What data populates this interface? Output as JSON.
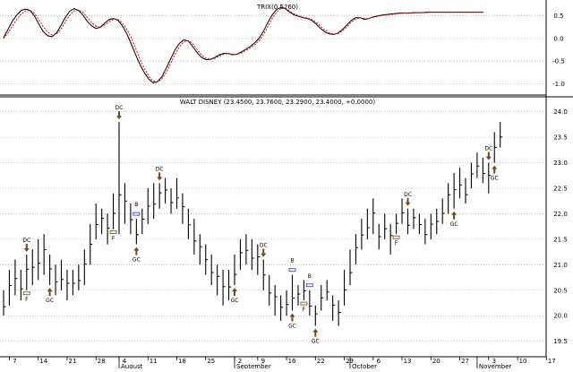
{
  "chart_data": [
    {
      "type": "line",
      "title": "TRIX(0.5260)",
      "ylim": [
        -1.25,
        0.85
      ],
      "y_ticks": [
        "0.5",
        "0.0",
        "-0.5",
        "-1.0"
      ],
      "y_tick_values": [
        0.5,
        0.0,
        -0.5,
        -1.0
      ],
      "grid": "horizontal dotted",
      "colors": {
        "trix": "#000000",
        "signal": "#e00000"
      },
      "x": [
        1,
        2,
        3,
        4,
        5,
        6,
        7,
        8,
        9,
        10,
        11,
        12,
        13,
        14,
        15,
        16,
        17,
        18,
        19,
        20,
        21,
        22,
        23,
        24,
        25,
        26,
        27,
        28,
        29,
        30,
        31,
        32,
        33,
        34,
        35,
        36,
        37,
        38,
        39,
        40,
        41,
        42,
        43,
        44,
        45,
        46,
        47,
        48,
        49,
        50,
        51,
        52,
        53,
        54,
        55,
        56,
        57,
        58,
        59,
        60,
        61,
        62,
        63,
        64,
        65,
        66,
        67,
        68,
        69,
        70,
        71,
        72,
        73,
        74,
        75,
        76,
        77,
        78,
        79,
        80,
        81,
        82,
        83,
        84,
        85,
        86,
        87,
        88,
        89,
        90,
        91,
        92,
        93,
        94,
        95,
        96,
        97,
        98,
        99,
        100,
        101,
        102,
        103,
        104,
        105,
        106,
        107,
        108,
        109,
        110
      ],
      "series": [
        {
          "id": "trix",
          "values": [
            0.02,
            0.2,
            0.38,
            0.52,
            0.62,
            0.65,
            0.62,
            0.5,
            0.32,
            0.15,
            0.06,
            0.04,
            0.12,
            0.28,
            0.46,
            0.6,
            0.66,
            0.62,
            0.52,
            0.38,
            0.28,
            0.22,
            0.25,
            0.34,
            0.42,
            0.44,
            0.4,
            0.28,
            0.1,
            -0.12,
            -0.36,
            -0.58,
            -0.76,
            -0.9,
            -0.98,
            -0.95,
            -0.84,
            -0.65,
            -0.44,
            -0.24,
            -0.1,
            -0.03,
            -0.06,
            -0.18,
            -0.32,
            -0.42,
            -0.47,
            -0.46,
            -0.42,
            -0.36,
            -0.33,
            -0.33,
            -0.36,
            -0.35,
            -0.3,
            -0.24,
            -0.18,
            -0.1,
            0.0,
            0.15,
            0.35,
            0.52,
            0.64,
            0.69,
            0.66,
            0.58,
            0.52,
            0.49,
            0.46,
            0.44,
            0.4,
            0.32,
            0.22,
            0.14,
            0.1,
            0.09,
            0.12,
            0.2,
            0.3,
            0.4,
            0.46,
            0.46,
            0.42,
            0.44,
            0.48,
            0.5,
            0.52,
            0.53,
            0.54,
            0.55,
            0.56,
            0.56,
            0.56,
            0.57,
            0.57,
            0.57,
            0.58,
            0.58,
            0.58,
            0.58,
            0.58,
            0.58,
            0.58,
            0.58,
            0.58,
            0.58,
            0.58,
            0.58,
            0.58,
            0.58
          ]
        },
        {
          "id": "signal",
          "values": [
            0.0,
            0.12,
            0.28,
            0.42,
            0.54,
            0.61,
            0.62,
            0.56,
            0.42,
            0.26,
            0.14,
            0.08,
            0.1,
            0.2,
            0.36,
            0.51,
            0.61,
            0.63,
            0.58,
            0.47,
            0.35,
            0.27,
            0.25,
            0.3,
            0.37,
            0.42,
            0.42,
            0.34,
            0.2,
            0.02,
            -0.22,
            -0.46,
            -0.67,
            -0.84,
            -0.94,
            -0.96,
            -0.89,
            -0.74,
            -0.54,
            -0.34,
            -0.17,
            -0.07,
            -0.05,
            -0.12,
            -0.25,
            -0.37,
            -0.44,
            -0.46,
            -0.44,
            -0.39,
            -0.35,
            -0.33,
            -0.35,
            -0.35,
            -0.32,
            -0.27,
            -0.21,
            -0.14,
            -0.05,
            0.08,
            0.26,
            0.44,
            0.58,
            0.66,
            0.67,
            0.61,
            0.54,
            0.5,
            0.47,
            0.45,
            0.42,
            0.36,
            0.27,
            0.18,
            0.12,
            0.1,
            0.11,
            0.17,
            0.26,
            0.36,
            0.43,
            0.46,
            0.44,
            0.44,
            0.47,
            0.49,
            0.51,
            0.52,
            0.53,
            0.54,
            0.55,
            0.56,
            0.56,
            0.56,
            0.57,
            0.57,
            0.57,
            0.58,
            0.58,
            0.58,
            0.58,
            0.58,
            0.58,
            0.58,
            0.58,
            0.58,
            0.58,
            0.58,
            0.58,
            0.58
          ]
        }
      ]
    },
    {
      "type": "ohlc",
      "title": "WALT DISNEY (23.4500, 23.7600, 23.2900, 23.4000, +0.0000)",
      "ylim": [
        19.3,
        24.1
      ],
      "y_ticks": [
        "24.0",
        "23.5",
        "23.0",
        "22.5",
        "22.0",
        "21.5",
        "21.0",
        "20.5",
        "20.0",
        "19.5"
      ],
      "y_tick_values": [
        24.0,
        23.5,
        23.0,
        22.5,
        22.0,
        21.5,
        21.0,
        20.5,
        20.0,
        19.5
      ],
      "x_ticks": [
        {
          "i": 1,
          "label": "7"
        },
        {
          "i": 6,
          "label": "14"
        },
        {
          "i": 11,
          "label": "21"
        },
        {
          "i": 16,
          "label": "28"
        },
        {
          "i": 20,
          "label": "4"
        },
        {
          "i": 25,
          "label": "11"
        },
        {
          "i": 30,
          "label": "18"
        },
        {
          "i": 35,
          "label": "25"
        },
        {
          "i": 40,
          "label": "2"
        },
        {
          "i": 44,
          "label": "9"
        },
        {
          "i": 49,
          "label": "16"
        },
        {
          "i": 54,
          "label": "22"
        },
        {
          "i": 59,
          "label": "29"
        },
        {
          "i": 64,
          "label": "6"
        },
        {
          "i": 69,
          "label": "13"
        },
        {
          "i": 74,
          "label": "20"
        },
        {
          "i": 79,
          "label": "27"
        },
        {
          "i": 84,
          "label": "3"
        },
        {
          "i": 89,
          "label": "10"
        },
        {
          "i": 94,
          "label": "17"
        }
      ],
      "month_labels": [
        {
          "i": 20,
          "label": "August"
        },
        {
          "i": 40,
          "label": "September"
        },
        {
          "i": 60,
          "label": "October"
        },
        {
          "i": 82,
          "label": "November"
        }
      ],
      "bar_count": 87,
      "bars_hl": [
        [
          20.0,
          20.5
        ],
        [
          20.2,
          20.9
        ],
        [
          20.4,
          21.1
        ],
        [
          20.3,
          20.9
        ],
        [
          20.5,
          21.2
        ],
        [
          20.6,
          21.3
        ],
        [
          20.7,
          21.5
        ],
        [
          20.8,
          21.6
        ],
        [
          20.6,
          21.2
        ],
        [
          20.4,
          21.0
        ],
        [
          20.5,
          21.1
        ],
        [
          20.3,
          20.9
        ],
        [
          20.4,
          20.9
        ],
        [
          20.5,
          21.0
        ],
        [
          20.6,
          21.3
        ],
        [
          21.0,
          21.8
        ],
        [
          21.5,
          22.2
        ],
        [
          21.6,
          22.1
        ],
        [
          21.4,
          22.0
        ],
        [
          21.7,
          22.4
        ],
        [
          21.6,
          23.8
        ],
        [
          21.8,
          22.6
        ],
        [
          21.6,
          22.2
        ],
        [
          21.4,
          21.9
        ],
        [
          21.6,
          22.1
        ],
        [
          21.8,
          22.5
        ],
        [
          21.9,
          22.6
        ],
        [
          22.1,
          22.6
        ],
        [
          22.2,
          22.7
        ],
        [
          22.0,
          22.5
        ],
        [
          22.1,
          22.7
        ],
        [
          21.8,
          22.4
        ],
        [
          21.5,
          22.1
        ],
        [
          21.2,
          21.9
        ],
        [
          21.0,
          21.6
        ],
        [
          20.8,
          21.4
        ],
        [
          20.6,
          21.2
        ],
        [
          20.4,
          21.0
        ],
        [
          20.2,
          20.9
        ],
        [
          20.3,
          20.9
        ],
        [
          20.6,
          21.2
        ],
        [
          20.9,
          21.5
        ],
        [
          21.0,
          21.6
        ],
        [
          20.9,
          21.5
        ],
        [
          20.8,
          21.4
        ],
        [
          20.5,
          21.1
        ],
        [
          20.2,
          20.8
        ],
        [
          20.0,
          20.6
        ],
        [
          19.9,
          20.4
        ],
        [
          20.0,
          20.5
        ],
        [
          20.1,
          20.8
        ],
        [
          20.2,
          20.6
        ],
        [
          20.3,
          20.7
        ],
        [
          20.0,
          20.5
        ],
        [
          19.8,
          20.2
        ],
        [
          20.1,
          20.6
        ],
        [
          20.3,
          20.7
        ],
        [
          19.9,
          20.4
        ],
        [
          19.8,
          20.3
        ],
        [
          20.2,
          20.9
        ],
        [
          20.6,
          21.3
        ],
        [
          21.0,
          21.6
        ],
        [
          21.3,
          21.9
        ],
        [
          21.5,
          22.1
        ],
        [
          21.6,
          22.3
        ],
        [
          21.3,
          21.8
        ],
        [
          21.5,
          22.0
        ],
        [
          21.2,
          21.8
        ],
        [
          21.6,
          22.0
        ],
        [
          21.8,
          22.3
        ],
        [
          21.6,
          22.1
        ],
        [
          21.7,
          22.1
        ],
        [
          21.6,
          22.0
        ],
        [
          21.4,
          21.9
        ],
        [
          21.5,
          22.0
        ],
        [
          21.6,
          22.1
        ],
        [
          21.8,
          22.3
        ],
        [
          22.0,
          22.6
        ],
        [
          22.1,
          22.8
        ],
        [
          22.3,
          22.9
        ],
        [
          22.2,
          22.7
        ],
        [
          22.5,
          23.0
        ],
        [
          22.7,
          23.2
        ],
        [
          22.6,
          23.1
        ],
        [
          22.4,
          23.0
        ],
        [
          23.0,
          23.6
        ],
        [
          23.3,
          23.8
        ]
      ],
      "annotations": [
        {
          "i": 4,
          "text": "DC",
          "row": "above"
        },
        {
          "i": 4,
          "text": "F",
          "row": "below"
        },
        {
          "i": 8,
          "text": "GC",
          "row": "below"
        },
        {
          "i": 20,
          "text": "DC",
          "row": "above"
        },
        {
          "i": 19,
          "text": "F",
          "row": "below"
        },
        {
          "i": 23,
          "text": "B",
          "row": "above"
        },
        {
          "i": 23,
          "text": "GC",
          "row": "below"
        },
        {
          "i": 27,
          "text": "DC",
          "row": "above"
        },
        {
          "i": 40,
          "text": "GC",
          "row": "below"
        },
        {
          "i": 45,
          "text": "DC",
          "row": "above"
        },
        {
          "i": 50,
          "text": "B",
          "row": "above"
        },
        {
          "i": 53,
          "text": "B",
          "row": "above"
        },
        {
          "i": 50,
          "text": "GC",
          "row": "below"
        },
        {
          "i": 54,
          "text": "GC",
          "row": "below"
        },
        {
          "i": 52,
          "text": "F",
          "row": "below"
        },
        {
          "i": 70,
          "text": "DC",
          "row": "above"
        },
        {
          "i": 68,
          "text": "F",
          "row": "below"
        },
        {
          "i": 78,
          "text": "GC",
          "row": "below"
        },
        {
          "i": 84,
          "text": "DC",
          "row": "above"
        },
        {
          "i": 85,
          "text": "GC",
          "row": "below"
        }
      ]
    }
  ]
}
